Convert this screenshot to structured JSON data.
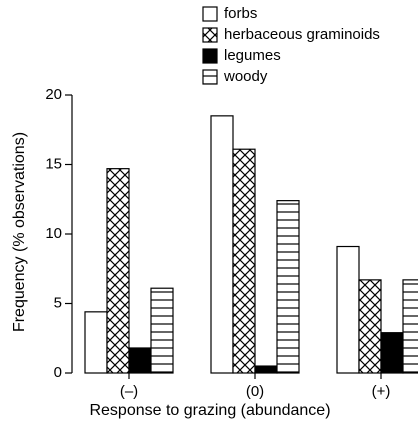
{
  "chart_data": {
    "type": "bar",
    "categories": [
      "(–)",
      "(0)",
      "(+)"
    ],
    "series": [
      {
        "name": "forbs",
        "color": "#ffffff",
        "pattern": "solid",
        "values": [
          4.4,
          18.5,
          9.1
        ]
      },
      {
        "name": "herbaceous graminoids",
        "color": "#ffffff",
        "pattern": "crosshatch",
        "values": [
          14.7,
          16.1,
          6.7
        ]
      },
      {
        "name": "legumes",
        "color": "#000000",
        "pattern": "solid",
        "values": [
          1.8,
          0.5,
          2.9
        ]
      },
      {
        "name": "woody",
        "color": "#ffffff",
        "pattern": "horizontal",
        "values": [
          6.1,
          12.4,
          6.7
        ]
      }
    ],
    "xlabel": "Response to grazing (abundance)",
    "ylabel": "Frequency (% observations)",
    "ylim": [
      0,
      20
    ],
    "yticks": [
      0,
      5,
      10,
      15,
      20
    ],
    "legend": "top"
  }
}
